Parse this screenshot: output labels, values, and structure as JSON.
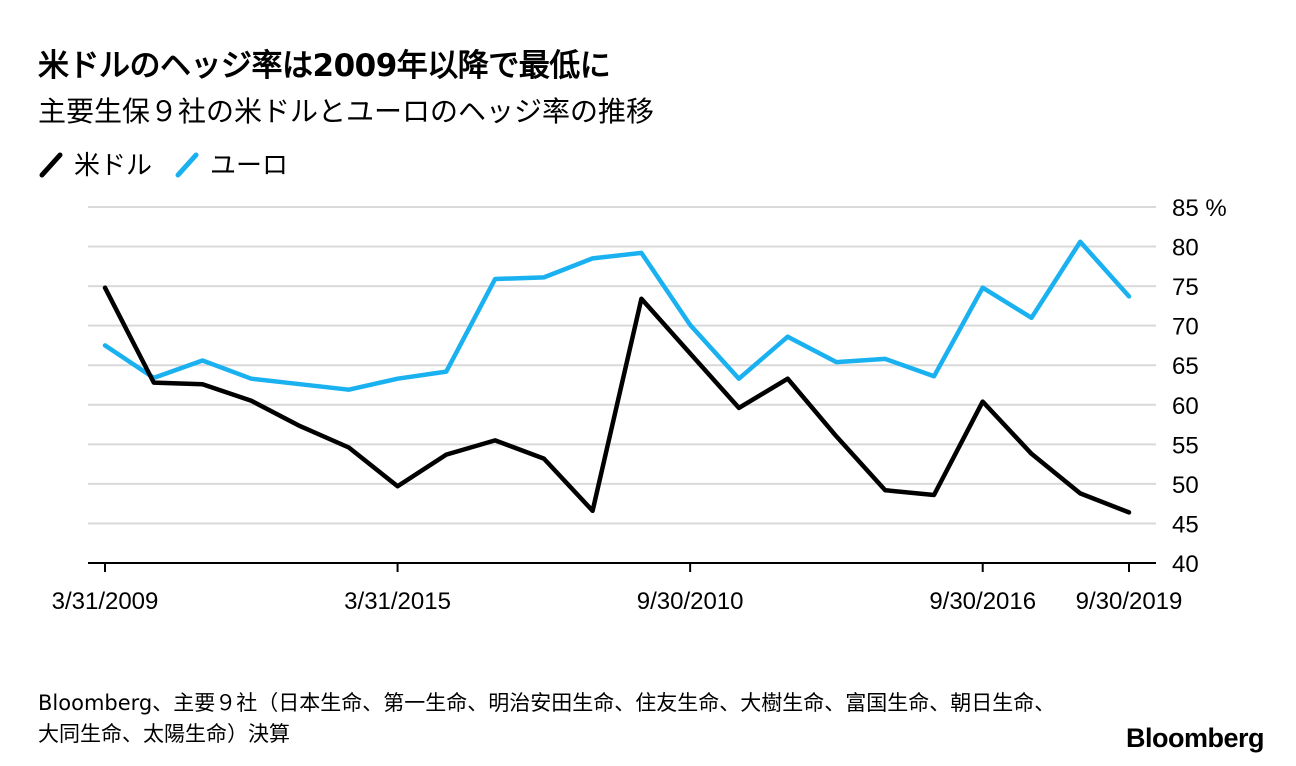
{
  "header": {
    "title": "米ドルのヘッジ率は2009年以降で最低に",
    "subtitle": "主要生保９社の米ドルとユーロのヘッジ率の推移"
  },
  "legend": [
    {
      "label": "米ドル",
      "color": "#000000"
    },
    {
      "label": "ユーロ",
      "color": "#1ab1f0"
    }
  ],
  "footer": {
    "source": "Bloomberg、主要９社（日本生命、第一生命、明治安田生命、住友生命、大樹生命、富国生命、朝日生命、大同生命、太陽生命）決算",
    "brand": "Bloomberg"
  },
  "chart_data": {
    "type": "line",
    "title": "米ドルのヘッジ率は2009年以降で最低に",
    "subtitle": "主要生保９社の米ドルとユーロのヘッジ率の推移",
    "xlabel": "",
    "ylabel": "",
    "y_unit": "%",
    "ylim": [
      40,
      85
    ],
    "y_ticks": [
      40,
      45,
      50,
      55,
      60,
      65,
      70,
      75,
      80,
      85
    ],
    "grid": true,
    "legend_position": "top-left",
    "x_tick_labels": [
      {
        "label": "3/31/2009",
        "index": 0
      },
      {
        "label": "3/31/2015",
        "index": 6
      },
      {
        "label": "9/30/2010",
        "index": 12
      },
      {
        "label": "9/30/2016",
        "index": 18
      },
      {
        "label": "9/30/2019",
        "index": 21
      }
    ],
    "point_count": 22,
    "series": [
      {
        "name": "米ドル",
        "color": "#000000",
        "values": [
          74.8,
          62.8,
          62.6,
          60.5,
          57.3,
          54.6,
          49.7,
          53.7,
          55.5,
          53.2,
          46.6,
          73.4,
          66.5,
          59.6,
          63.3,
          56.0,
          49.2,
          48.6,
          60.4,
          53.8,
          48.8,
          46.4
        ]
      },
      {
        "name": "ユーロ",
        "color": "#1ab1f0",
        "values": [
          67.5,
          63.4,
          65.6,
          63.3,
          62.6,
          61.9,
          63.3,
          64.2,
          75.9,
          76.1,
          78.5,
          79.2,
          70.1,
          63.3,
          68.6,
          65.4,
          65.8,
          63.6,
          74.8,
          71.0,
          80.6,
          73.7
        ]
      }
    ]
  }
}
